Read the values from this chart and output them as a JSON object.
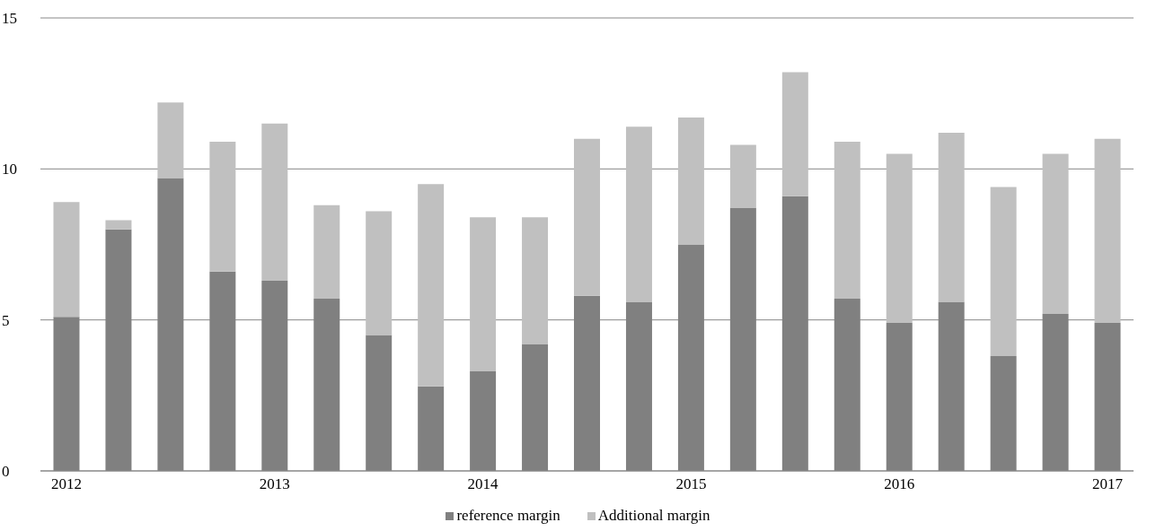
{
  "chart_data": {
    "type": "bar",
    "stacked": true,
    "categories": [
      "2012",
      null,
      null,
      null,
      "2013",
      null,
      null,
      null,
      "2014",
      null,
      null,
      null,
      "2015",
      null,
      null,
      null,
      "2016",
      null,
      null,
      null,
      "2017"
    ],
    "series": [
      {
        "name": "reference margin",
        "color": "#808080",
        "values": [
          5.1,
          8.0,
          9.7,
          6.6,
          6.3,
          5.7,
          4.5,
          2.8,
          3.3,
          4.2,
          5.8,
          5.6,
          7.5,
          8.7,
          9.1,
          5.7,
          4.9,
          5.6,
          3.8,
          5.2,
          4.9
        ]
      },
      {
        "name": "Additional margin",
        "color": "#c0c0c0",
        "values": [
          3.8,
          0.3,
          2.5,
          4.3,
          5.2,
          3.1,
          4.1,
          6.7,
          5.1,
          4.2,
          5.2,
          5.8,
          4.2,
          2.1,
          4.1,
          5.2,
          5.6,
          5.6,
          5.6,
          5.3,
          6.1
        ]
      }
    ],
    "ylim": [
      0,
      15
    ],
    "yticks": [
      0,
      5,
      10,
      15
    ],
    "grid": "y",
    "legend": "bottom"
  }
}
